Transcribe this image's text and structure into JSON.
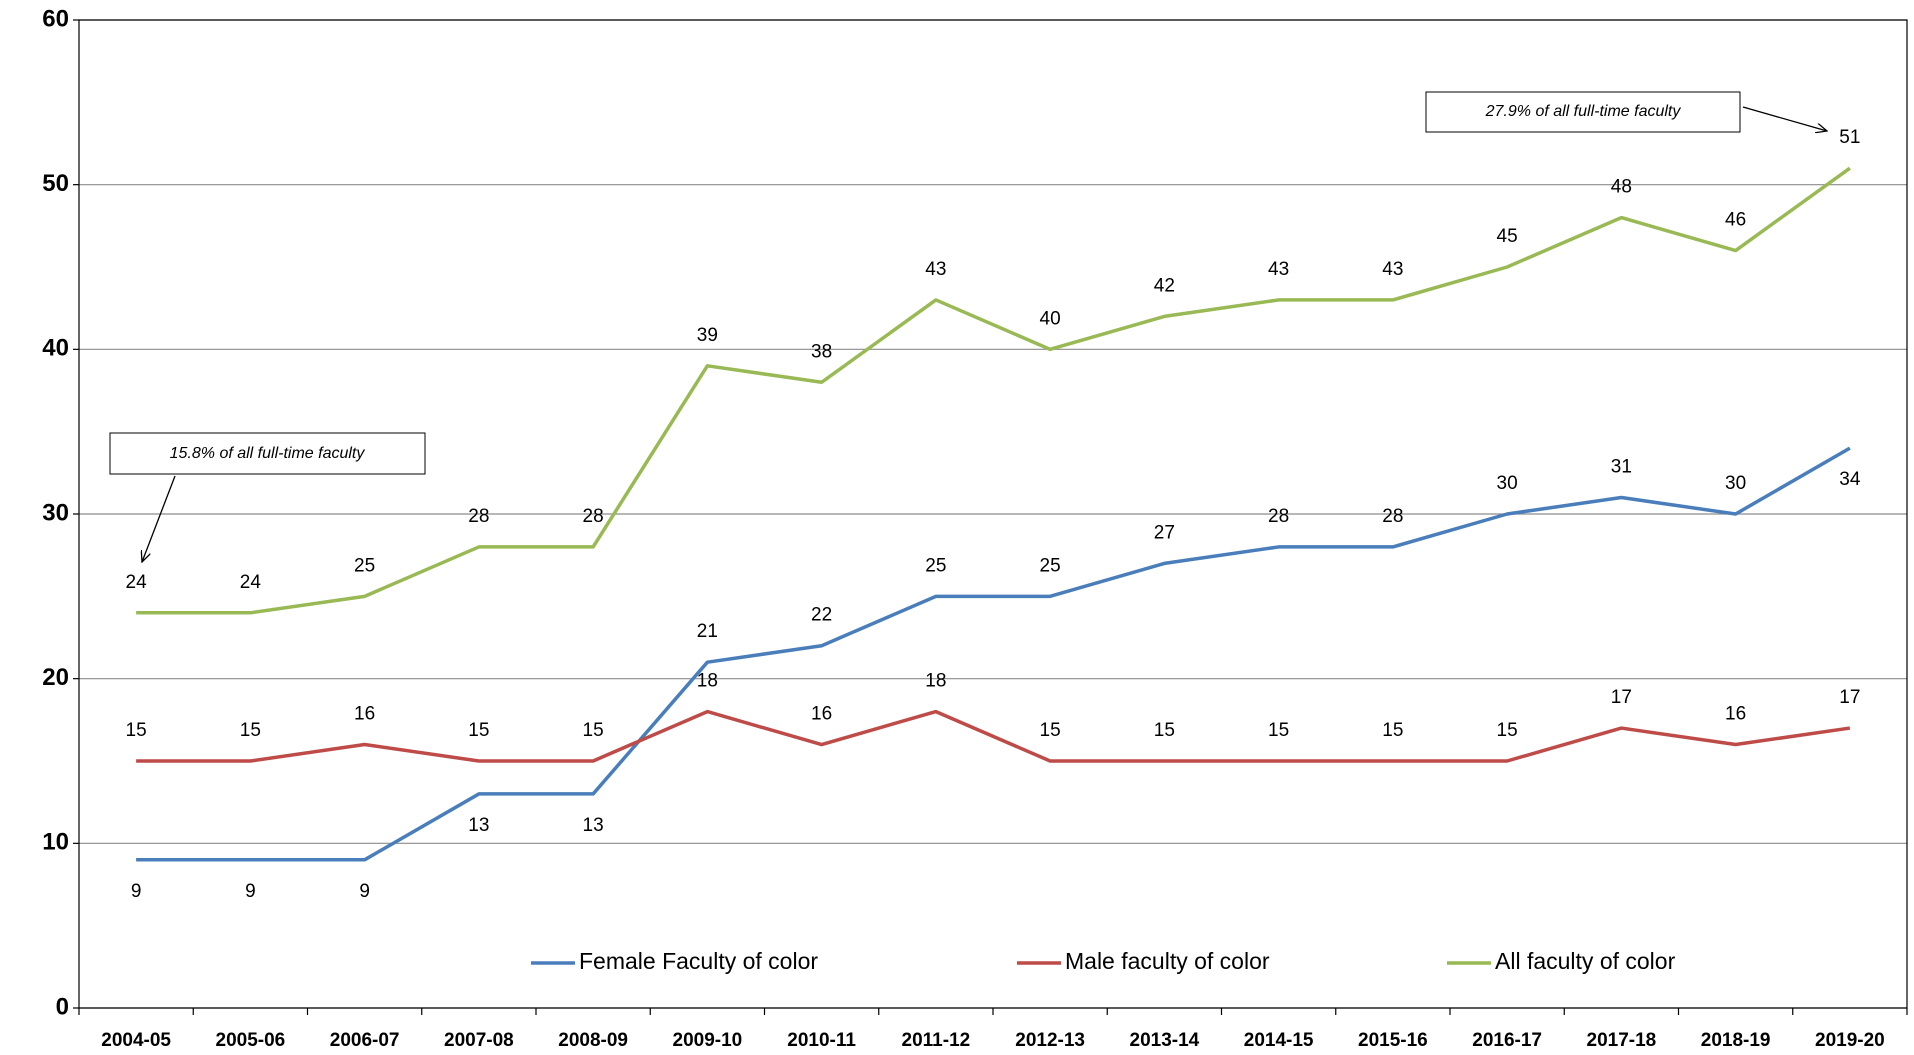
{
  "chart_data": {
    "type": "line",
    "categories": [
      "2004-05",
      "2005-06",
      "2006-07",
      "2007-08",
      "2008-09",
      "2009-10",
      "2010-11",
      "2011-12",
      "2012-13",
      "2013-14",
      "2014-15",
      "2015-16",
      "2016-17",
      "2017-18",
      "2018-19",
      "2019-20"
    ],
    "series": [
      {
        "name": "Female Faculty of color",
        "color": "#4a7ebb",
        "values": [
          9,
          9,
          9,
          13,
          13,
          21,
          22,
          25,
          25,
          27,
          28,
          28,
          30,
          31,
          30,
          34
        ]
      },
      {
        "name": "Male faculty of color",
        "color": "#be4b48",
        "values": [
          15,
          15,
          16,
          15,
          15,
          18,
          16,
          18,
          15,
          15,
          15,
          15,
          15,
          17,
          16,
          17
        ]
      },
      {
        "name": "All faculty of color",
        "color": "#98b954",
        "values": [
          24,
          24,
          25,
          28,
          28,
          39,
          38,
          43,
          40,
          42,
          43,
          43,
          45,
          48,
          46,
          51
        ]
      }
    ],
    "ylim": [
      0,
      60
    ],
    "yticks": [
      0,
      10,
      20,
      30,
      40,
      50,
      60
    ],
    "grid": true,
    "legend": "bottom",
    "annotations": [
      "15.8% of all full-time faculty",
      "27.9% of all full-time faculty"
    ]
  }
}
